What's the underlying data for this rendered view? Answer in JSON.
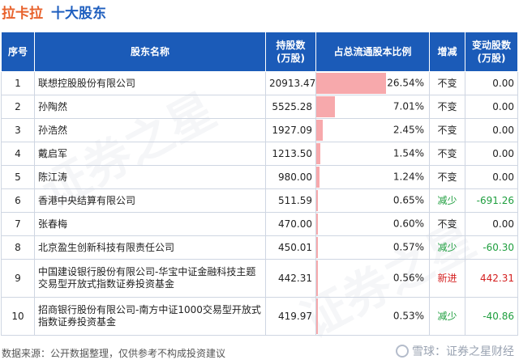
{
  "title": {
    "company": "拉卡拉",
    "subtitle": "十大股东"
  },
  "table": {
    "headers": {
      "rank": "序号",
      "name": "股东名称",
      "shares": "持股数\n(万股)",
      "ratio": "占总流通股本比例",
      "change": "增减",
      "amount": "变动股数\n(万股)"
    },
    "rows": [
      {
        "rank": "1",
        "name": "联想控股股份有限公司",
        "shares": "20913.47",
        "ratio": "26.54%",
        "ratio_value": 26.54,
        "change": "不变",
        "change_type": "same",
        "amount": "0.00"
      },
      {
        "rank": "2",
        "name": "孙陶然",
        "shares": "5525.28",
        "ratio": "7.01%",
        "ratio_value": 7.01,
        "change": "不变",
        "change_type": "same",
        "amount": "0.00"
      },
      {
        "rank": "3",
        "name": "孙浩然",
        "shares": "1927.09",
        "ratio": "2.45%",
        "ratio_value": 2.45,
        "change": "不变",
        "change_type": "same",
        "amount": "0.00"
      },
      {
        "rank": "4",
        "name": "戴启军",
        "shares": "1213.50",
        "ratio": "1.54%",
        "ratio_value": 1.54,
        "change": "不变",
        "change_type": "same",
        "amount": "0.00"
      },
      {
        "rank": "5",
        "name": "陈江涛",
        "shares": "980.00",
        "ratio": "1.24%",
        "ratio_value": 1.24,
        "change": "不变",
        "change_type": "same",
        "amount": "0.00"
      },
      {
        "rank": "6",
        "name": "香港中央结算有限公司",
        "shares": "511.59",
        "ratio": "0.65%",
        "ratio_value": 0.65,
        "change": "减少",
        "change_type": "down",
        "amount": "-691.26"
      },
      {
        "rank": "7",
        "name": "张春梅",
        "shares": "470.00",
        "ratio": "0.60%",
        "ratio_value": 0.6,
        "change": "不变",
        "change_type": "same",
        "amount": "0.00"
      },
      {
        "rank": "8",
        "name": "北京盈生创新科技有限责任公司",
        "shares": "450.01",
        "ratio": "0.57%",
        "ratio_value": 0.57,
        "change": "减少",
        "change_type": "down",
        "amount": "-60.30"
      },
      {
        "rank": "9",
        "name": "中国建设银行股份有限公司-华宝中证金融科技主题交易型开放式指数证券投资基金",
        "shares": "442.31",
        "ratio": "0.56%",
        "ratio_value": 0.56,
        "change": "新进",
        "change_type": "new",
        "amount": "442.31"
      },
      {
        "rank": "10",
        "name": "招商银行股份有限公司-南方中证1000交易型开放式指数证券投资基金",
        "shares": "419.97",
        "ratio": "0.53%",
        "ratio_value": 0.53,
        "change": "减少",
        "change_type": "down",
        "amount": "-40.86"
      }
    ]
  },
  "footer": {
    "source": "数据来源：公开数据整理，仅供参考不构成投资建议",
    "brand": "雪球：证券之星财经"
  },
  "colors": {
    "header_bg": "#1b5bb8",
    "company_title": "#e8622c",
    "subtitle": "#1f5fbf",
    "bar": "#f7a9ac",
    "decrease": "#1e9e3e",
    "increase": "#d42020"
  }
}
